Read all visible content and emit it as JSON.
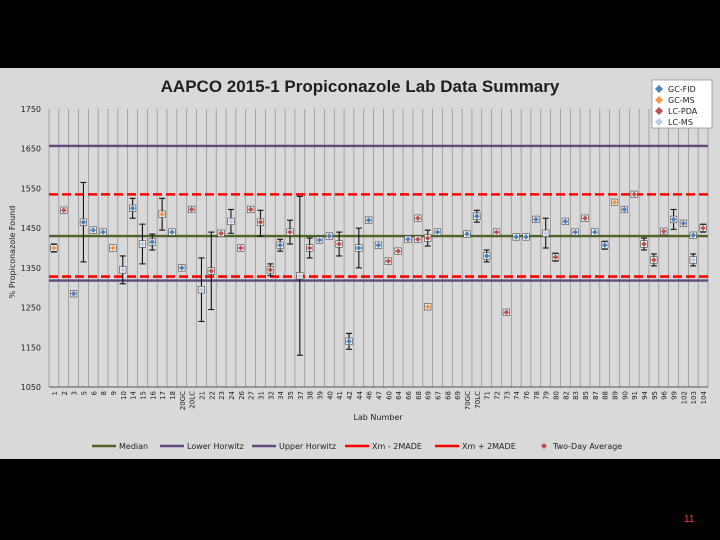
{
  "page_number": "11",
  "colors": {
    "background": "#000000",
    "panel": "#d9d9d9",
    "median": "#4f6228",
    "horwitz": "#604a7b",
    "xm": "#ff0000",
    "marker_red": "#c0504d",
    "gc_fid": "#4f81bd",
    "gc_ms": "#f79646",
    "lc_ms": "#b9cde5"
  },
  "chart_data": {
    "type": "scatter",
    "title": "AAPCO 2015-1 Propiconazole Lab Data Summary",
    "xlabel": "Lab Number",
    "ylabel": "% Propiconazole Found",
    "ylim": [
      1050,
      1750
    ],
    "yticks": [
      "1750",
      "1650",
      "1550",
      "1450",
      "1350",
      "1250",
      "1150",
      "1050"
    ],
    "grid": true,
    "legend_position": "top-right",
    "categories": [
      "1",
      "2",
      "3",
      "5",
      "6",
      "8",
      "9",
      "10",
      "14",
      "15",
      "16",
      "17",
      "18",
      "20GC",
      "20LC",
      "21",
      "22",
      "23",
      "24",
      "26",
      "27",
      "31",
      "32",
      "34",
      "35",
      "37",
      "38",
      "39",
      "40",
      "41",
      "42",
      "44",
      "46",
      "47",
      "60",
      "64",
      "66",
      "68",
      "69",
      "67",
      "68",
      "69",
      "70GC",
      "70LC",
      "71",
      "72",
      "73",
      "74",
      "76",
      "78",
      "79",
      "80",
      "82",
      "83",
      "85",
      "87",
      "88",
      "89",
      "90",
      "91",
      "94",
      "95",
      "96",
      "99",
      "102",
      "103",
      "104"
    ],
    "legend_series": [
      "GC-FID",
      "GC-MS",
      "LC-PDA",
      "LC-MS"
    ],
    "legend_lines": [
      {
        "name": "Median",
        "value": 1430,
        "style": "solid",
        "color": "#4f6228"
      },
      {
        "name": "Lower Horwitz",
        "value": 1318,
        "style": "solid",
        "color": "#604a7b"
      },
      {
        "name": "Upper Horwitz",
        "value": 1657,
        "style": "solid",
        "color": "#604a7b"
      },
      {
        "name": "Xm - 2MADE",
        "value": 1328,
        "style": "dashed",
        "color": "#ff0000"
      },
      {
        "name": "Xm + 2MADE",
        "value": 1535,
        "style": "dashed",
        "color": "#ff0000"
      },
      {
        "name": "Two-Day Average",
        "style": "marker",
        "color": "#c0504d"
      }
    ],
    "points": [
      {
        "cat": "1",
        "v": 1400,
        "lo": 1390,
        "hi": 1410,
        "m": "GC-MS"
      },
      {
        "cat": "2",
        "v": 1495,
        "lo": 1490,
        "hi": 1500,
        "m": "LC-PDA"
      },
      {
        "cat": "3",
        "v": 1285,
        "lo": 1280,
        "hi": 1290,
        "m": "GC-FID"
      },
      {
        "cat": "5",
        "v": 1465,
        "lo": 1365,
        "hi": 1565,
        "m": "GC-FID"
      },
      {
        "cat": "6",
        "v": 1445,
        "lo": 1440,
        "hi": 1450,
        "m": "GC-FID"
      },
      {
        "cat": "8",
        "v": 1440,
        "lo": 1435,
        "hi": 1445,
        "m": "GC-FID"
      },
      {
        "cat": "9",
        "v": 1400,
        "lo": 1395,
        "hi": 1405,
        "m": "GC-MS"
      },
      {
        "cat": "10",
        "v": 1345,
        "lo": 1310,
        "hi": 1380,
        "m": "LC-MS"
      },
      {
        "cat": "14",
        "v": 1500,
        "lo": 1475,
        "hi": 1525,
        "m": "GC-FID"
      },
      {
        "cat": "15",
        "v": 1410,
        "lo": 1360,
        "hi": 1460,
        "m": "LC-MS"
      },
      {
        "cat": "16",
        "v": 1415,
        "lo": 1395,
        "hi": 1435,
        "m": "GC-FID"
      },
      {
        "cat": "17",
        "v": 1485,
        "lo": 1445,
        "hi": 1525,
        "m": "GC-MS"
      },
      {
        "cat": "18",
        "v": 1440,
        "lo": 1435,
        "hi": 1445,
        "m": "GC-FID"
      },
      {
        "cat": "20GC",
        "v": 1350,
        "lo": 1345,
        "hi": 1355,
        "m": "GC-FID"
      },
      {
        "cat": "20LC",
        "v": 1497,
        "lo": 1492,
        "hi": 1502,
        "m": "LC-PDA"
      },
      {
        "cat": "21",
        "v": 1295,
        "lo": 1215,
        "hi": 1375,
        "m": "LC-MS"
      },
      {
        "cat": "22",
        "v": 1342,
        "lo": 1245,
        "hi": 1440,
        "m": "LC-PDA"
      },
      {
        "cat": "23",
        "v": 1437,
        "lo": 1432,
        "hi": 1442,
        "m": "LC-PDA"
      },
      {
        "cat": "24",
        "v": 1467,
        "lo": 1437,
        "hi": 1497,
        "m": "LC-MS"
      },
      {
        "cat": "26",
        "v": 1400,
        "lo": 1395,
        "hi": 1405,
        "m": "LC-PDA"
      },
      {
        "cat": "27",
        "v": 1497,
        "lo": 1492,
        "hi": 1502,
        "m": "LC-PDA"
      },
      {
        "cat": "31",
        "v": 1465,
        "lo": 1430,
        "hi": 1495,
        "m": "LC-PDA"
      },
      {
        "cat": "32",
        "v": 1345,
        "lo": 1330,
        "hi": 1360,
        "m": "LC-PDA"
      },
      {
        "cat": "34",
        "v": 1407,
        "lo": 1392,
        "hi": 1422,
        "m": "GC-FID"
      },
      {
        "cat": "35",
        "v": 1440,
        "lo": 1410,
        "hi": 1470,
        "m": "LC-PDA"
      },
      {
        "cat": "37",
        "v": 1330,
        "lo": 1130,
        "hi": 1530,
        "m": "LC-MS"
      },
      {
        "cat": "38",
        "v": 1400,
        "lo": 1375,
        "hi": 1425,
        "m": "LC-PDA"
      },
      {
        "cat": "39",
        "v": 1420,
        "lo": 1415,
        "hi": 1425,
        "m": "GC-FID"
      },
      {
        "cat": "40",
        "v": 1430,
        "lo": 1425,
        "hi": 1435,
        "m": "GC-FID"
      },
      {
        "cat": "41",
        "v": 1410,
        "lo": 1380,
        "hi": 1440,
        "m": "LC-PDA"
      },
      {
        "cat": "42",
        "v": 1165,
        "lo": 1145,
        "hi": 1185,
        "m": "GC-FID"
      },
      {
        "cat": "44",
        "v": 1400,
        "lo": 1350,
        "hi": 1450,
        "m": "GC-FID"
      },
      {
        "cat": "46",
        "v": 1470,
        "lo": 1465,
        "hi": 1475,
        "m": "GC-FID"
      },
      {
        "cat": "47",
        "v": 1407,
        "lo": 1402,
        "hi": 1412,
        "m": "GC-FID"
      },
      {
        "cat": "60",
        "v": 1367,
        "lo": 1362,
        "hi": 1372,
        "m": "LC-PDA"
      },
      {
        "cat": "64",
        "v": 1392,
        "lo": 1387,
        "hi": 1397,
        "m": "LC-PDA"
      },
      {
        "cat": "66",
        "v": 1422,
        "lo": 1417,
        "hi": 1427,
        "m": "GC-FID"
      },
      {
        "cat": "68",
        "v": 1475,
        "lo": 1470,
        "hi": 1480,
        "m": "LC-PDA"
      },
      {
        "cat": "69",
        "v": 1425,
        "lo": 1405,
        "hi": 1445,
        "m": "LC-PDA"
      },
      {
        "cat": "67",
        "v": 1440,
        "lo": 1435,
        "hi": 1445,
        "m": "GC-FID"
      },
      {
        "cat": "68",
        "v": 1422,
        "lo": 1417,
        "hi": 1427,
        "m": "LC-PDA"
      },
      {
        "cat": "69",
        "v": 1252,
        "lo": 1247,
        "hi": 1257,
        "m": "GC-MS"
      },
      {
        "cat": "70GC",
        "v": 1435,
        "lo": 1430,
        "hi": 1440,
        "m": "GC-FID"
      },
      {
        "cat": "70LC",
        "v": 1480,
        "lo": 1465,
        "hi": 1495,
        "m": "GC-FID"
      },
      {
        "cat": "71",
        "v": 1380,
        "lo": 1365,
        "hi": 1395,
        "m": "GC-FID"
      },
      {
        "cat": "72",
        "v": 1440,
        "lo": 1435,
        "hi": 1445,
        "m": "LC-PDA"
      },
      {
        "cat": "73",
        "v": 1238,
        "lo": 1233,
        "hi": 1243,
        "m": "LC-PDA"
      },
      {
        "cat": "74",
        "v": 1428,
        "lo": 1423,
        "hi": 1433,
        "m": "GC-FID"
      },
      {
        "cat": "76",
        "v": 1428,
        "lo": 1423,
        "hi": 1433,
        "m": "GC-FID"
      },
      {
        "cat": "78",
        "v": 1472,
        "lo": 1467,
        "hi": 1477,
        "m": "GC-FID"
      },
      {
        "cat": "79",
        "v": 1437,
        "lo": 1400,
        "hi": 1475,
        "m": "LC-MS"
      },
      {
        "cat": "80",
        "v": 1377,
        "lo": 1367,
        "hi": 1387,
        "m": "LC-PDA"
      },
      {
        "cat": "82",
        "v": 1467,
        "lo": 1462,
        "hi": 1472,
        "m": "GC-FID"
      },
      {
        "cat": "83",
        "v": 1440,
        "lo": 1435,
        "hi": 1445,
        "m": "GC-FID"
      },
      {
        "cat": "85",
        "v": 1475,
        "lo": 1470,
        "hi": 1480,
        "m": "LC-PDA"
      },
      {
        "cat": "87",
        "v": 1440,
        "lo": 1435,
        "hi": 1445,
        "m": "GC-FID"
      },
      {
        "cat": "88",
        "v": 1407,
        "lo": 1397,
        "hi": 1417,
        "m": "GC-FID"
      },
      {
        "cat": "89",
        "v": 1515,
        "lo": 1510,
        "hi": 1520,
        "m": "GC-MS"
      },
      {
        "cat": "90",
        "v": 1497,
        "lo": 1492,
        "hi": 1502,
        "m": "GC-FID"
      },
      {
        "cat": "91",
        "v": 1535,
        "lo": 1530,
        "hi": 1540,
        "m": "LC-PDA"
      },
      {
        "cat": "94",
        "v": 1410,
        "lo": 1395,
        "hi": 1425,
        "m": "LC-PDA"
      },
      {
        "cat": "95",
        "v": 1370,
        "lo": 1355,
        "hi": 1385,
        "m": "LC-PDA"
      },
      {
        "cat": "96",
        "v": 1442,
        "lo": 1437,
        "hi": 1447,
        "m": "LC-PDA"
      },
      {
        "cat": "99",
        "v": 1472,
        "lo": 1447,
        "hi": 1497,
        "m": "GC-FID"
      },
      {
        "cat": "102",
        "v": 1462,
        "lo": 1457,
        "hi": 1467,
        "m": "GC-FID"
      },
      {
        "cat": "103",
        "v": 1370,
        "lo": 1355,
        "hi": 1385,
        "m": "LC-MS"
      },
      {
        "cat": "103",
        "v": 1432,
        "lo": 1427,
        "hi": 1437,
        "m": "GC-FID"
      },
      {
        "cat": "104",
        "v": 1450,
        "lo": 1440,
        "hi": 1460,
        "m": "LC-PDA"
      }
    ]
  }
}
